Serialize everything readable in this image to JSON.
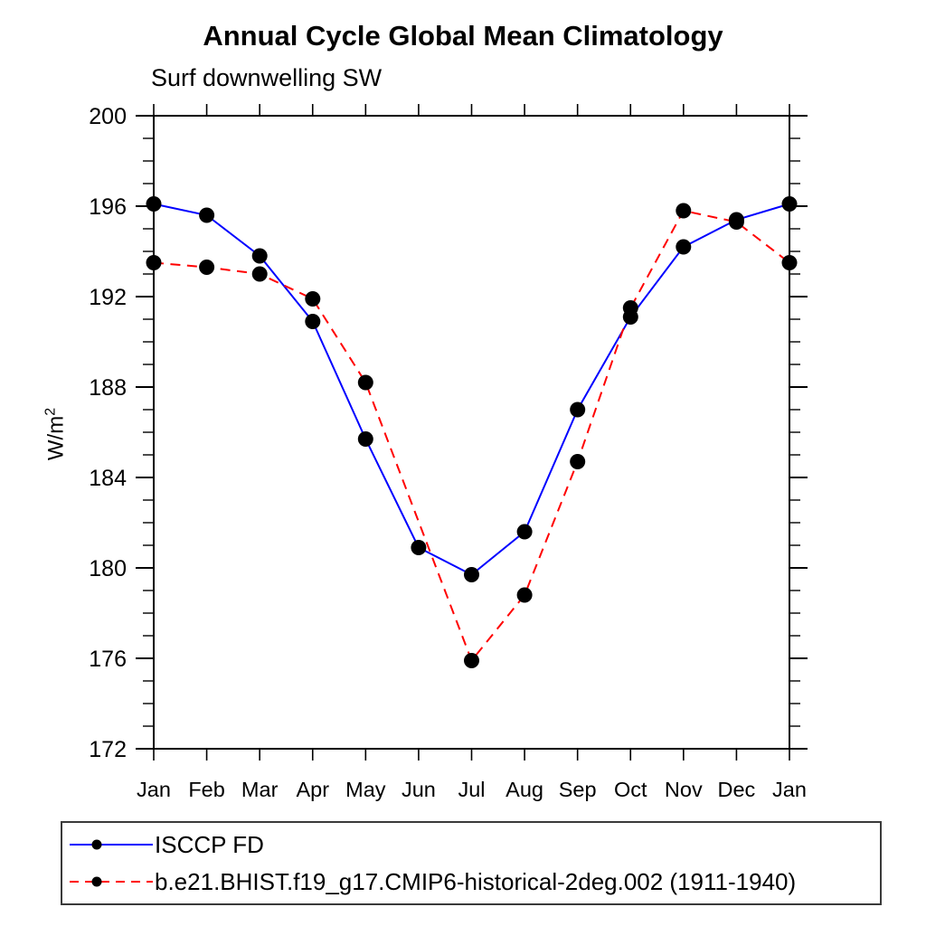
{
  "chart_data": {
    "type": "line",
    "title": "Annual Cycle Global Mean Climatology",
    "subtitle": "Surf downwelling SW",
    "ylabel_base": "W/m",
    "ylabel_sup": "2",
    "x_categories": [
      "Jan",
      "Feb",
      "Mar",
      "Apr",
      "May",
      "Jun",
      "Jul",
      "Aug",
      "Sep",
      "Oct",
      "Nov",
      "Dec",
      "Jan"
    ],
    "ylim": [
      172,
      200
    ],
    "yticks_major": [
      172,
      176,
      180,
      184,
      188,
      192,
      196,
      200
    ],
    "ytick_minor_step": 1,
    "grid": false,
    "frame": "full-box-outward-ticks",
    "legend_position": "bottom-left-boxed",
    "series": [
      {
        "name": "ISCCP FD",
        "color": "#0000ff",
        "line_style": "solid",
        "marker": "filled-circle",
        "marker_color": "#000000",
        "values": [
          196.1,
          195.6,
          193.8,
          190.9,
          185.7,
          180.9,
          179.7,
          181.6,
          187.0,
          191.1,
          194.2,
          195.4,
          196.1
        ]
      },
      {
        "name": "b.e21.BHIST.f19_g17.CMIP6-historical-2deg.002 (1911-1940)",
        "color": "#ff0000",
        "line_style": "dashed",
        "marker": "filled-circle",
        "marker_color": "#000000",
        "values": [
          193.5,
          193.3,
          193.0,
          191.9,
          188.2,
          null,
          175.9,
          178.8,
          184.7,
          191.5,
          195.8,
          195.3,
          193.5
        ],
        "gap_note": "no marker at Jun; dashed line runs straight from May to Jul"
      }
    ]
  }
}
